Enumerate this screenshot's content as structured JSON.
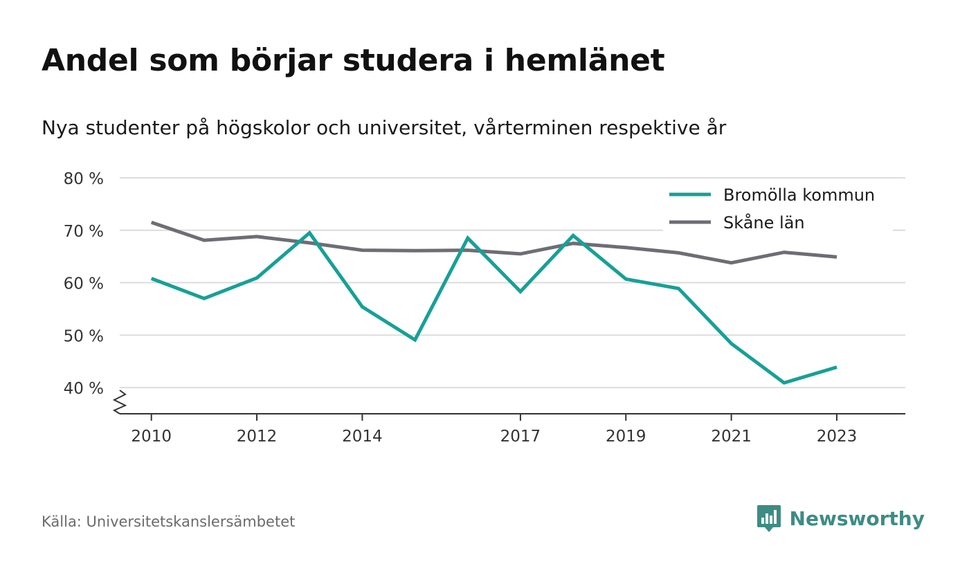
{
  "title": "Andel som börjar studera i hemlänet",
  "subtitle": "Nya studenter på högskolor och universitet, vårterminen respektive år",
  "source": "Källa: Universitetskanslersämbetet",
  "brand": {
    "name": "Newsworthy",
    "icon": "newsworthy-logo-icon",
    "color": "#3d8c84"
  },
  "chart_data": {
    "type": "line",
    "title": "Andel som börjar studera i hemlänet",
    "subtitle": "Nya studenter på högskolor och universitet, vårterminen respektive år",
    "xlabel": "",
    "ylabel": "",
    "x": [
      2010,
      2011,
      2012,
      2013,
      2014,
      2015,
      2016,
      2017,
      2018,
      2019,
      2020,
      2021,
      2022,
      2023
    ],
    "xlim": [
      2009.4,
      2024.3
    ],
    "ylim": [
      35,
      80
    ],
    "y_axis_broken": true,
    "x_ticks": [
      2010,
      2012,
      2014,
      2017,
      2019,
      2021,
      2023
    ],
    "x_tick_labels": [
      "2010",
      "2012",
      "2014",
      "2017",
      "2019",
      "2021",
      "2023"
    ],
    "y_ticks": [
      40,
      50,
      60,
      70,
      80
    ],
    "y_tick_labels": [
      "40 %",
      "50 %",
      "60 %",
      "70 %",
      "80 %"
    ],
    "grid": true,
    "legend_position": "top-right",
    "series": [
      {
        "name": "Bromölla kommun",
        "color": "#17a096",
        "values": [
          60.8,
          57,
          60.9,
          69.5,
          55.4,
          49.1,
          68.5,
          58.3,
          69,
          60.7,
          58.9,
          48.4,
          40.9,
          43.9
        ]
      },
      {
        "name": "Skåne län",
        "color": "#6e6d75",
        "values": [
          71.5,
          68.1,
          68.8,
          67.6,
          66.2,
          66.1,
          66.2,
          65.5,
          67.5,
          66.7,
          65.7,
          63.8,
          65.8,
          64.9
        ]
      }
    ]
  }
}
